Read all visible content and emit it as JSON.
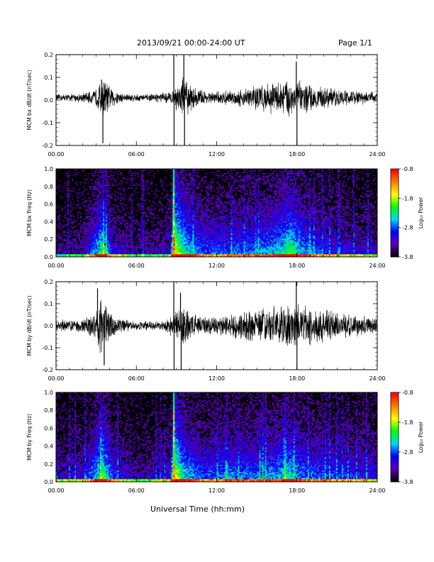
{
  "header": {
    "date_range": "2013/09/21  00:00-24:00 UT",
    "page": "Page 1/1"
  },
  "xaxis_label": "Universal Time (hh:mm)",
  "colors": {
    "trace": "#000000",
    "background": "#000000",
    "colormap": [
      "#000000",
      "#5b00b8",
      "#0000ff",
      "#00d8ff",
      "#00ff00",
      "#ffff00",
      "#ff7f00",
      "#ff0000"
    ]
  },
  "chart_data": [
    {
      "type": "line",
      "ylabel": "MCM bx dB/dt (nT/sec)",
      "x_ticks": [
        "00:00",
        "06:00",
        "12:00",
        "18:00",
        "24:00"
      ],
      "xlim": [
        0,
        24
      ],
      "ylim": [
        -0.2,
        0.2
      ],
      "y_ticks": [
        "-0.2",
        "-0.1",
        "0.0",
        "0.1",
        "0.2"
      ],
      "y_tick_values": [
        -0.2,
        -0.1,
        0.0,
        0.1,
        0.2
      ],
      "baseline": 0.01,
      "noise_envelope": [
        {
          "x": 0,
          "amp": 0.015
        },
        {
          "x": 1.5,
          "amp": 0.018
        },
        {
          "x": 2.8,
          "amp": 0.03
        },
        {
          "x": 3.2,
          "amp": 0.06
        },
        {
          "x": 3.6,
          "amp": 0.09
        },
        {
          "x": 4.0,
          "amp": 0.05
        },
        {
          "x": 5.0,
          "amp": 0.02
        },
        {
          "x": 7.0,
          "amp": 0.015
        },
        {
          "x": 8.8,
          "amp": 0.03
        },
        {
          "x": 9.0,
          "amp": 0.06
        },
        {
          "x": 9.5,
          "amp": 0.1
        },
        {
          "x": 10.2,
          "amp": 0.05
        },
        {
          "x": 11.5,
          "amp": 0.025
        },
        {
          "x": 13.5,
          "amp": 0.035
        },
        {
          "x": 15.0,
          "amp": 0.06
        },
        {
          "x": 16.5,
          "amp": 0.07
        },
        {
          "x": 17.5,
          "amp": 0.09
        },
        {
          "x": 18.0,
          "amp": 0.08
        },
        {
          "x": 19.5,
          "amp": 0.05
        },
        {
          "x": 21.5,
          "amp": 0.035
        },
        {
          "x": 24.0,
          "amp": 0.025
        }
      ],
      "spikes": [
        {
          "x": 3.5,
          "y": -0.19
        },
        {
          "x": 3.4,
          "y": 0.09
        },
        {
          "x": 8.8,
          "y": 0.22
        },
        {
          "x": 8.82,
          "y": -0.22
        },
        {
          "x": 9.55,
          "y": 0.21
        },
        {
          "x": 9.6,
          "y": -0.2
        },
        {
          "x": 17.95,
          "y": 0.17
        },
        {
          "x": 18.0,
          "y": -0.21
        }
      ]
    },
    {
      "type": "heatmap",
      "ylabel": "MCM bx Freq (Hz)",
      "x_ticks": [
        "00:00",
        "06:00",
        "12:00",
        "18:00",
        "24:00"
      ],
      "xlim": [
        0,
        24
      ],
      "ylim": [
        0,
        1.0
      ],
      "y_ticks": [
        "0.0",
        "0.2",
        "0.4",
        "0.6",
        "0.8",
        "1.0"
      ],
      "y_tick_values": [
        0.0,
        0.2,
        0.4,
        0.6,
        0.8,
        1.0
      ],
      "colorbar": {
        "label": "Log₁₀ Power",
        "ticks": [
          "-0.8",
          "-1.8",
          "-2.8",
          "-3.8"
        ],
        "tick_values": [
          -0.8,
          -1.8,
          -2.8,
          -3.8
        ],
        "range": [
          -3.8,
          -0.8
        ]
      },
      "activity": [
        {
          "x": 0,
          "level": 0.15
        },
        {
          "x": 2.0,
          "level": 0.2
        },
        {
          "x": 3.0,
          "level": 0.55
        },
        {
          "x": 3.5,
          "level": 0.75
        },
        {
          "x": 4.2,
          "level": 0.35
        },
        {
          "x": 6.0,
          "level": 0.15
        },
        {
          "x": 8.5,
          "level": 0.25
        },
        {
          "x": 8.8,
          "level": 1.0
        },
        {
          "x": 9.5,
          "level": 0.7
        },
        {
          "x": 11.0,
          "level": 0.45
        },
        {
          "x": 13.0,
          "level": 0.45
        },
        {
          "x": 15.0,
          "level": 0.5
        },
        {
          "x": 16.5,
          "level": 0.6
        },
        {
          "x": 17.5,
          "level": 0.75
        },
        {
          "x": 18.5,
          "level": 0.55
        },
        {
          "x": 20.0,
          "level": 0.4
        },
        {
          "x": 22.0,
          "level": 0.3
        },
        {
          "x": 24.0,
          "level": 0.25
        }
      ],
      "vertical_line": {
        "x": 8.8
      }
    },
    {
      "type": "line",
      "ylabel": "MCM by dB/dt (nT/sec)",
      "x_ticks": [
        "00:00",
        "06:00",
        "12:00",
        "18:00",
        "24:00"
      ],
      "xlim": [
        0,
        24
      ],
      "ylim": [
        -0.2,
        0.2
      ],
      "y_ticks": [
        "-0.2",
        "-0.1",
        "0.0",
        "0.1",
        "0.2"
      ],
      "y_tick_values": [
        -0.2,
        -0.1,
        0.0,
        0.1,
        0.2
      ],
      "baseline": 0.0,
      "noise_envelope": [
        {
          "x": 0,
          "amp": 0.025
        },
        {
          "x": 2.0,
          "amp": 0.03
        },
        {
          "x": 2.8,
          "amp": 0.06
        },
        {
          "x": 3.3,
          "amp": 0.12
        },
        {
          "x": 3.8,
          "amp": 0.1
        },
        {
          "x": 4.3,
          "amp": 0.05
        },
        {
          "x": 5.5,
          "amp": 0.02
        },
        {
          "x": 8.0,
          "amp": 0.02
        },
        {
          "x": 8.8,
          "amp": 0.06
        },
        {
          "x": 9.5,
          "amp": 0.1
        },
        {
          "x": 10.3,
          "amp": 0.05
        },
        {
          "x": 12.0,
          "amp": 0.04
        },
        {
          "x": 13.5,
          "amp": 0.06
        },
        {
          "x": 15.0,
          "amp": 0.08
        },
        {
          "x": 17.0,
          "amp": 0.09
        },
        {
          "x": 18.5,
          "amp": 0.1
        },
        {
          "x": 20.0,
          "amp": 0.08
        },
        {
          "x": 22.0,
          "amp": 0.05
        },
        {
          "x": 24.0,
          "amp": 0.04
        }
      ],
      "spikes": [
        {
          "x": 3.1,
          "y": 0.17
        },
        {
          "x": 3.6,
          "y": -0.18
        },
        {
          "x": 8.8,
          "y": 0.22
        },
        {
          "x": 8.82,
          "y": -0.22
        },
        {
          "x": 9.3,
          "y": 0.15
        },
        {
          "x": 9.35,
          "y": -0.2
        },
        {
          "x": 17.95,
          "y": 0.2
        },
        {
          "x": 18.0,
          "y": -0.21
        }
      ]
    },
    {
      "type": "heatmap",
      "ylabel": "MCM by Freq (Hz)",
      "x_ticks": [
        "00:00",
        "06:00",
        "12:00",
        "18:00",
        "24:00"
      ],
      "xlim": [
        0,
        24
      ],
      "ylim": [
        0,
        1.0
      ],
      "y_ticks": [
        "0.0",
        "0.2",
        "0.4",
        "0.6",
        "0.8",
        "1.0"
      ],
      "y_tick_values": [
        0.0,
        0.2,
        0.4,
        0.6,
        0.8,
        1.0
      ],
      "colorbar": {
        "label": "Log₁₀ Power",
        "ticks": [
          "-0.8",
          "-1.8",
          "-2.8",
          "-3.8"
        ],
        "tick_values": [
          -0.8,
          -1.8,
          -2.8,
          -3.8
        ],
        "range": [
          -3.8,
          -0.8
        ]
      },
      "activity": [
        {
          "x": 0,
          "level": 0.25
        },
        {
          "x": 2.0,
          "level": 0.3
        },
        {
          "x": 3.0,
          "level": 0.6
        },
        {
          "x": 3.5,
          "level": 0.8
        },
        {
          "x": 4.3,
          "level": 0.4
        },
        {
          "x": 6.0,
          "level": 0.2
        },
        {
          "x": 8.5,
          "level": 0.3
        },
        {
          "x": 8.8,
          "level": 1.0
        },
        {
          "x": 9.5,
          "level": 0.65
        },
        {
          "x": 11.0,
          "level": 0.45
        },
        {
          "x": 13.0,
          "level": 0.5
        },
        {
          "x": 15.0,
          "level": 0.5
        },
        {
          "x": 16.5,
          "level": 0.55
        },
        {
          "x": 17.5,
          "level": 0.65
        },
        {
          "x": 18.5,
          "level": 0.5
        },
        {
          "x": 20.0,
          "level": 0.45
        },
        {
          "x": 21.5,
          "level": 0.4
        },
        {
          "x": 24.0,
          "level": 0.35
        }
      ],
      "vertical_line": {
        "x": 8.8
      }
    }
  ]
}
